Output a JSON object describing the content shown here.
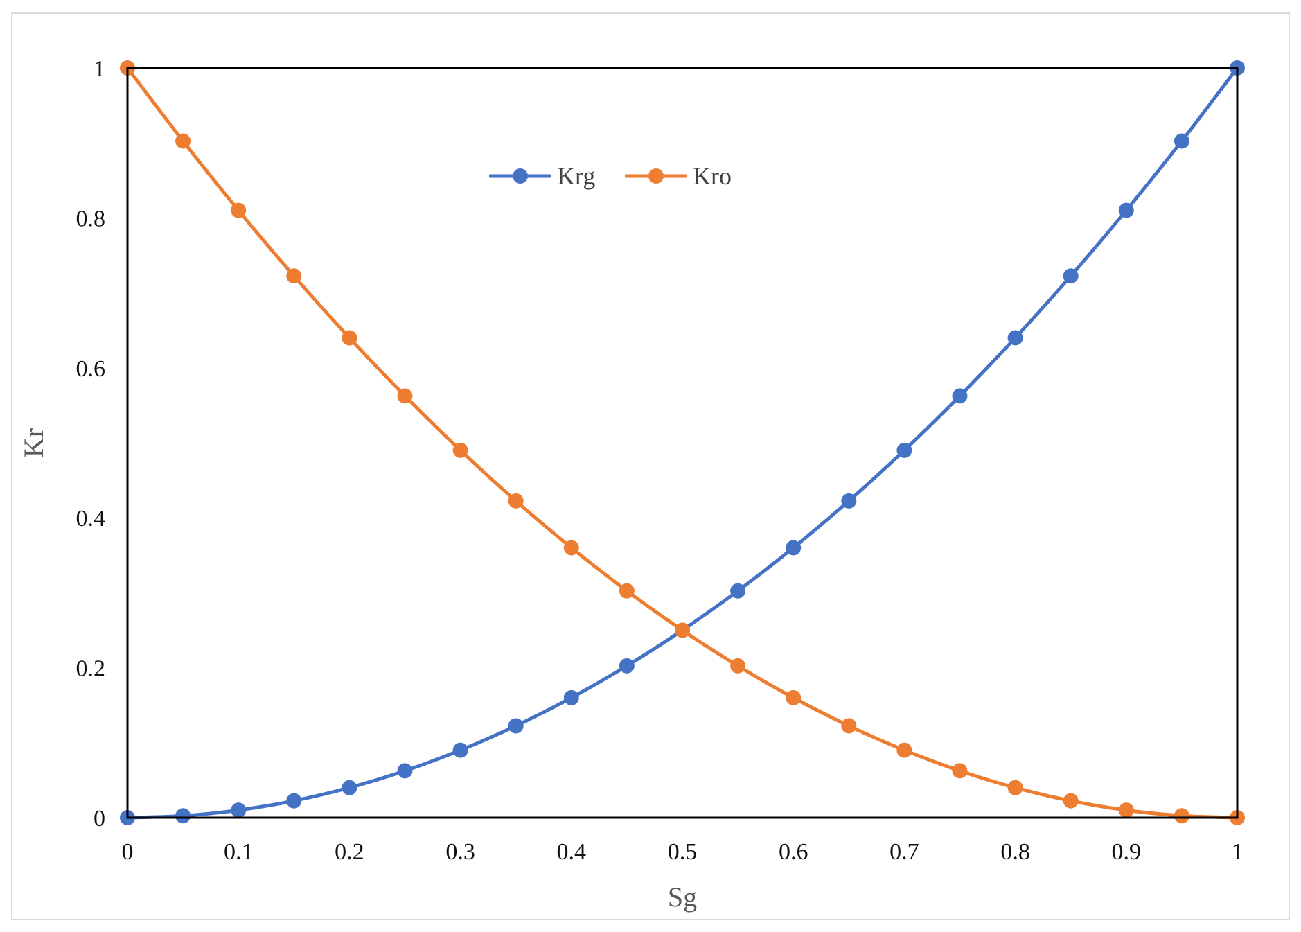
{
  "chart_data": {
    "type": "line",
    "xlabel": "Sg",
    "ylabel": "Kr",
    "xlim": [
      0,
      1
    ],
    "ylim": [
      0,
      1
    ],
    "x_ticks": [
      "0",
      "0.1",
      "0.2",
      "0.3",
      "0.4",
      "0.5",
      "0.6",
      "0.7",
      "0.8",
      "0.9",
      "1"
    ],
    "y_ticks": [
      "0",
      "0.2",
      "0.4",
      "0.6",
      "0.8",
      "1"
    ],
    "grid": false,
    "legend_position": "top-center",
    "x": [
      0,
      0.05,
      0.1,
      0.15,
      0.2,
      0.25,
      0.3,
      0.35,
      0.4,
      0.45,
      0.5,
      0.55,
      0.6,
      0.65,
      0.7,
      0.75,
      0.8,
      0.85,
      0.9,
      0.95,
      1
    ],
    "series": [
      {
        "name": "Krg",
        "color": "#4472c4",
        "values": [
          0,
          0.0025,
          0.01,
          0.0225,
          0.04,
          0.0625,
          0.09,
          0.1225,
          0.16,
          0.2025,
          0.25,
          0.3025,
          0.36,
          0.4225,
          0.49,
          0.5625,
          0.64,
          0.7225,
          0.81,
          0.9025,
          1
        ]
      },
      {
        "name": "Kro",
        "color": "#ed7d31",
        "values": [
          1,
          0.9025,
          0.81,
          0.7225,
          0.64,
          0.5625,
          0.49,
          0.4225,
          0.36,
          0.3025,
          0.25,
          0.2025,
          0.16,
          0.1225,
          0.09,
          0.0625,
          0.04,
          0.0225,
          0.01,
          0.0025,
          0
        ]
      }
    ]
  }
}
